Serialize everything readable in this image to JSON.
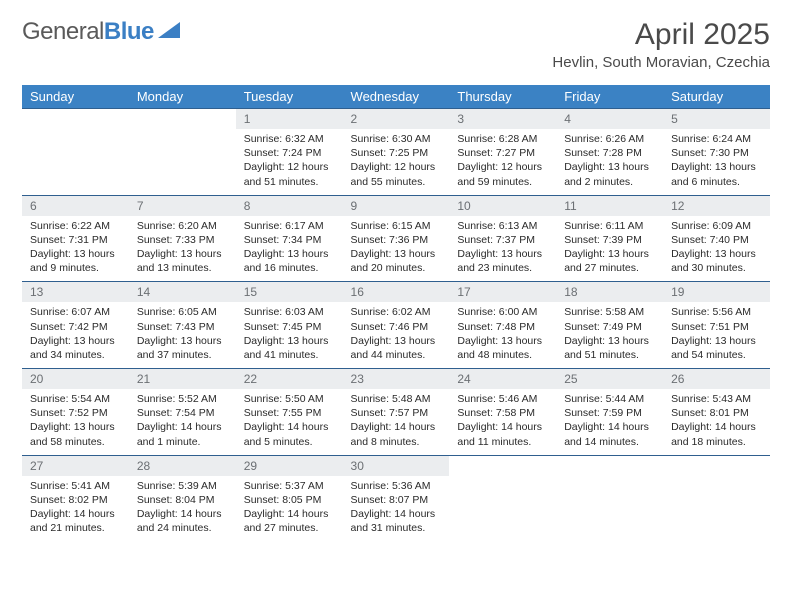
{
  "logo": {
    "word1": "General",
    "word2": "Blue"
  },
  "title": "April 2025",
  "location": "Hevlin, South Moravian, Czechia",
  "colors": {
    "header_bg": "#3b82c4",
    "daynum_bg": "#ebedef",
    "border_top": "#2f5f8f",
    "logo_gray": "#5a5a5a",
    "logo_blue": "#3b7fc4"
  },
  "weekdays": [
    "Sunday",
    "Monday",
    "Tuesday",
    "Wednesday",
    "Thursday",
    "Friday",
    "Saturday"
  ],
  "weeks": [
    {
      "nums": [
        "",
        "",
        "1",
        "2",
        "3",
        "4",
        "5"
      ],
      "cells": [
        null,
        null,
        {
          "sunrise": "Sunrise: 6:32 AM",
          "sunset": "Sunset: 7:24 PM",
          "daylight": "Daylight: 12 hours and 51 minutes."
        },
        {
          "sunrise": "Sunrise: 6:30 AM",
          "sunset": "Sunset: 7:25 PM",
          "daylight": "Daylight: 12 hours and 55 minutes."
        },
        {
          "sunrise": "Sunrise: 6:28 AM",
          "sunset": "Sunset: 7:27 PM",
          "daylight": "Daylight: 12 hours and 59 minutes."
        },
        {
          "sunrise": "Sunrise: 6:26 AM",
          "sunset": "Sunset: 7:28 PM",
          "daylight": "Daylight: 13 hours and 2 minutes."
        },
        {
          "sunrise": "Sunrise: 6:24 AM",
          "sunset": "Sunset: 7:30 PM",
          "daylight": "Daylight: 13 hours and 6 minutes."
        }
      ]
    },
    {
      "nums": [
        "6",
        "7",
        "8",
        "9",
        "10",
        "11",
        "12"
      ],
      "cells": [
        {
          "sunrise": "Sunrise: 6:22 AM",
          "sunset": "Sunset: 7:31 PM",
          "daylight": "Daylight: 13 hours and 9 minutes."
        },
        {
          "sunrise": "Sunrise: 6:20 AM",
          "sunset": "Sunset: 7:33 PM",
          "daylight": "Daylight: 13 hours and 13 minutes."
        },
        {
          "sunrise": "Sunrise: 6:17 AM",
          "sunset": "Sunset: 7:34 PM",
          "daylight": "Daylight: 13 hours and 16 minutes."
        },
        {
          "sunrise": "Sunrise: 6:15 AM",
          "sunset": "Sunset: 7:36 PM",
          "daylight": "Daylight: 13 hours and 20 minutes."
        },
        {
          "sunrise": "Sunrise: 6:13 AM",
          "sunset": "Sunset: 7:37 PM",
          "daylight": "Daylight: 13 hours and 23 minutes."
        },
        {
          "sunrise": "Sunrise: 6:11 AM",
          "sunset": "Sunset: 7:39 PM",
          "daylight": "Daylight: 13 hours and 27 minutes."
        },
        {
          "sunrise": "Sunrise: 6:09 AM",
          "sunset": "Sunset: 7:40 PM",
          "daylight": "Daylight: 13 hours and 30 minutes."
        }
      ]
    },
    {
      "nums": [
        "13",
        "14",
        "15",
        "16",
        "17",
        "18",
        "19"
      ],
      "cells": [
        {
          "sunrise": "Sunrise: 6:07 AM",
          "sunset": "Sunset: 7:42 PM",
          "daylight": "Daylight: 13 hours and 34 minutes."
        },
        {
          "sunrise": "Sunrise: 6:05 AM",
          "sunset": "Sunset: 7:43 PM",
          "daylight": "Daylight: 13 hours and 37 minutes."
        },
        {
          "sunrise": "Sunrise: 6:03 AM",
          "sunset": "Sunset: 7:45 PM",
          "daylight": "Daylight: 13 hours and 41 minutes."
        },
        {
          "sunrise": "Sunrise: 6:02 AM",
          "sunset": "Sunset: 7:46 PM",
          "daylight": "Daylight: 13 hours and 44 minutes."
        },
        {
          "sunrise": "Sunrise: 6:00 AM",
          "sunset": "Sunset: 7:48 PM",
          "daylight": "Daylight: 13 hours and 48 minutes."
        },
        {
          "sunrise": "Sunrise: 5:58 AM",
          "sunset": "Sunset: 7:49 PM",
          "daylight": "Daylight: 13 hours and 51 minutes."
        },
        {
          "sunrise": "Sunrise: 5:56 AM",
          "sunset": "Sunset: 7:51 PM",
          "daylight": "Daylight: 13 hours and 54 minutes."
        }
      ]
    },
    {
      "nums": [
        "20",
        "21",
        "22",
        "23",
        "24",
        "25",
        "26"
      ],
      "cells": [
        {
          "sunrise": "Sunrise: 5:54 AM",
          "sunset": "Sunset: 7:52 PM",
          "daylight": "Daylight: 13 hours and 58 minutes."
        },
        {
          "sunrise": "Sunrise: 5:52 AM",
          "sunset": "Sunset: 7:54 PM",
          "daylight": "Daylight: 14 hours and 1 minute."
        },
        {
          "sunrise": "Sunrise: 5:50 AM",
          "sunset": "Sunset: 7:55 PM",
          "daylight": "Daylight: 14 hours and 5 minutes."
        },
        {
          "sunrise": "Sunrise: 5:48 AM",
          "sunset": "Sunset: 7:57 PM",
          "daylight": "Daylight: 14 hours and 8 minutes."
        },
        {
          "sunrise": "Sunrise: 5:46 AM",
          "sunset": "Sunset: 7:58 PM",
          "daylight": "Daylight: 14 hours and 11 minutes."
        },
        {
          "sunrise": "Sunrise: 5:44 AM",
          "sunset": "Sunset: 7:59 PM",
          "daylight": "Daylight: 14 hours and 14 minutes."
        },
        {
          "sunrise": "Sunrise: 5:43 AM",
          "sunset": "Sunset: 8:01 PM",
          "daylight": "Daylight: 14 hours and 18 minutes."
        }
      ]
    },
    {
      "nums": [
        "27",
        "28",
        "29",
        "30",
        "",
        "",
        ""
      ],
      "cells": [
        {
          "sunrise": "Sunrise: 5:41 AM",
          "sunset": "Sunset: 8:02 PM",
          "daylight": "Daylight: 14 hours and 21 minutes."
        },
        {
          "sunrise": "Sunrise: 5:39 AM",
          "sunset": "Sunset: 8:04 PM",
          "daylight": "Daylight: 14 hours and 24 minutes."
        },
        {
          "sunrise": "Sunrise: 5:37 AM",
          "sunset": "Sunset: 8:05 PM",
          "daylight": "Daylight: 14 hours and 27 minutes."
        },
        {
          "sunrise": "Sunrise: 5:36 AM",
          "sunset": "Sunset: 8:07 PM",
          "daylight": "Daylight: 14 hours and 31 minutes."
        },
        null,
        null,
        null
      ]
    }
  ]
}
